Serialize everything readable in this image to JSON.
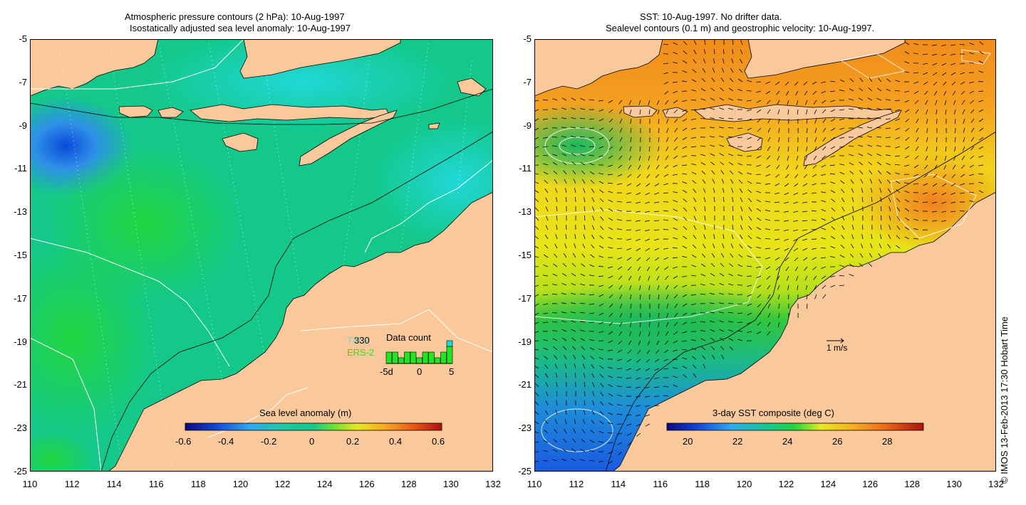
{
  "left_panel": {
    "title_line1": "Atmospheric pressure contours (2 hPa): 10-Aug-1997",
    "title_line2": "Isostatically adjusted sea level anomaly: 10-Aug-1997",
    "colorbar": {
      "title": "Sea level anomaly (m)",
      "ticks": [
        "-0.6",
        "-0.4",
        "-0.2",
        "0",
        "0.2",
        "0.4",
        "0.6"
      ]
    },
    "data_count": {
      "title": "Data count",
      "value": "330",
      "satellite1": "T/P-x",
      "satellite2": "ERS-2",
      "axis_ticks": [
        "-5d",
        "0",
        "5"
      ],
      "bars": [
        2,
        2,
        1,
        2,
        2,
        1,
        2,
        2,
        1,
        2,
        3
      ],
      "highlight_bars": [
        0,
        0,
        0,
        0,
        0,
        0,
        0,
        0,
        0,
        0,
        1
      ]
    }
  },
  "right_panel": {
    "title_line1": "SST: 10-Aug-1997. No drifter data.",
    "title_line2": "Sealevel contours (0.1 m) and geostrophic velocity: 10-Aug-1997.",
    "colorbar": {
      "title": "3-day SST composite (deg C)",
      "ticks": [
        "20",
        "22",
        "24",
        "26",
        "28"
      ]
    },
    "velocity_scale": "1 m/s"
  },
  "axes": {
    "lat_ticks": [
      "-5",
      "-7",
      "-9",
      "-11",
      "-13",
      "-15",
      "-17",
      "-19",
      "-21",
      "-23",
      "-25"
    ],
    "lon_ticks": [
      "110",
      "112",
      "114",
      "116",
      "118",
      "120",
      "122",
      "124",
      "126",
      "128",
      "130",
      "132"
    ],
    "lat_range": [
      -25,
      -5
    ],
    "lon_range": [
      110,
      132
    ]
  },
  "copyright": "© IMOS 13-Feb-2013 17:30 Hobart Time",
  "colors": {
    "land": "#f9c89b",
    "ocean_base_left": "#14c88a",
    "ocean_base_right": "#f5d41c",
    "contour": "#000000"
  }
}
